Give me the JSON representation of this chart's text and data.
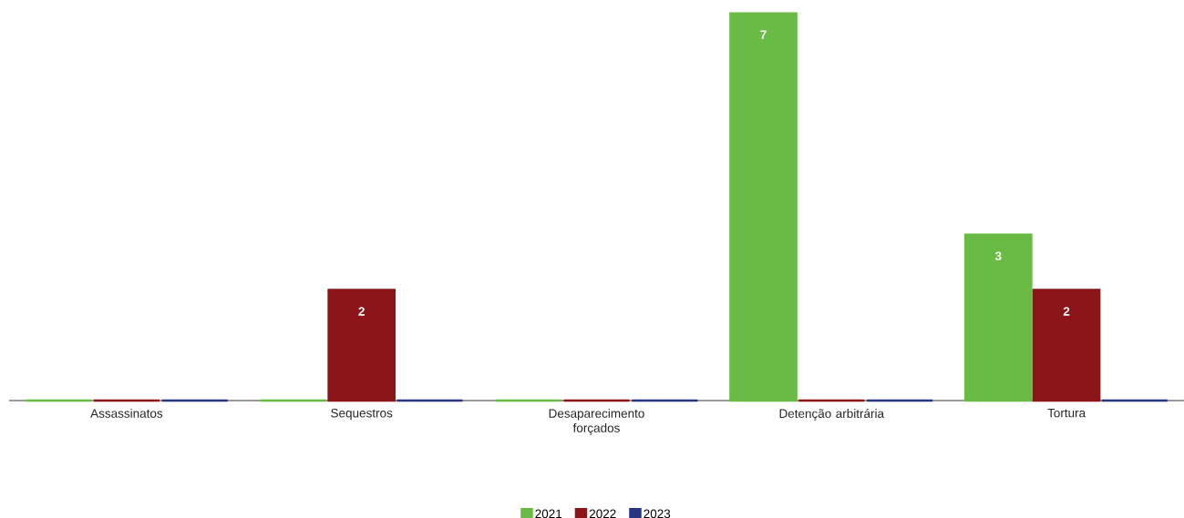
{
  "chart_data": {
    "type": "bar",
    "categories": [
      "Assassinatos",
      "Sequestros",
      "Desaparecimento forçados",
      "Detenção arbitrária",
      "Tortura"
    ],
    "series": [
      {
        "name": "2021",
        "color": "#6abb45",
        "values": [
          0,
          0,
          0,
          7,
          3
        ],
        "value_labels": [
          null,
          null,
          null,
          "7",
          "3"
        ]
      },
      {
        "name": "2022",
        "color": "#8b1519",
        "values": [
          0,
          2,
          0,
          0,
          2
        ],
        "value_labels": [
          null,
          "2",
          null,
          null,
          "2"
        ]
      },
      {
        "name": "2023",
        "color": "#283583",
        "values": [
          0,
          0,
          0,
          0,
          0
        ],
        "value_labels": [
          null,
          null,
          null,
          null,
          null
        ]
      }
    ],
    "legend": "bottom"
  }
}
